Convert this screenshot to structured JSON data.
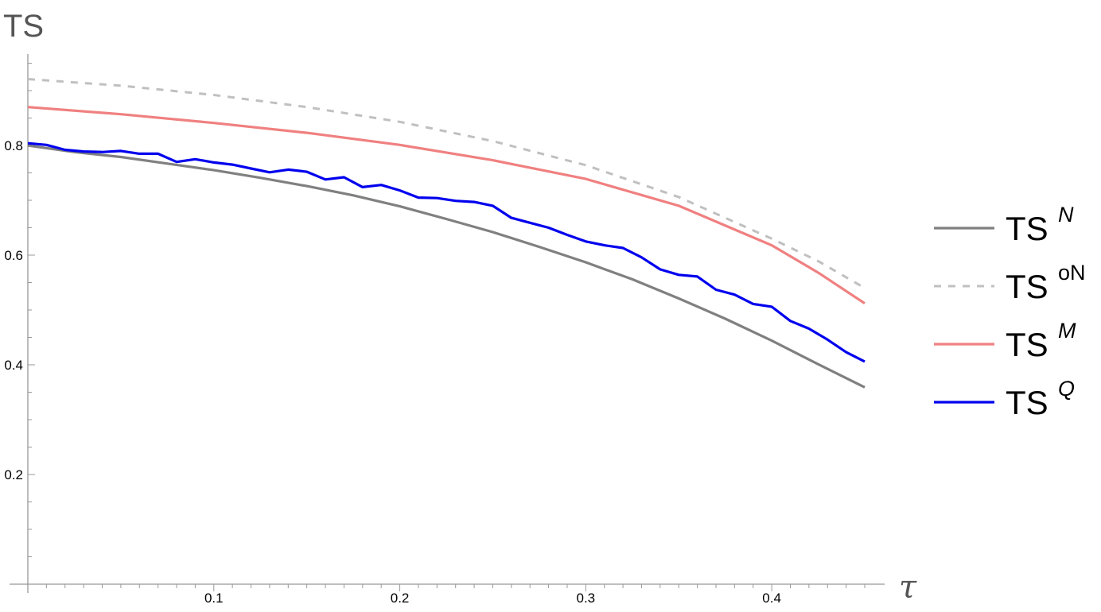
{
  "chart_data": {
    "type": "line",
    "title": "",
    "ylabel": "TS",
    "xlabel": "τ",
    "xlim": [
      0,
      0.462
    ],
    "ylim": [
      0,
      0.97
    ],
    "x_ticks": [
      0.1,
      0.2,
      0.3,
      0.4
    ],
    "x_tick_labels": [
      "0.1",
      "0.2",
      "0.3",
      "0.4"
    ],
    "y_ticks": [
      0.2,
      0.4,
      0.6,
      0.8
    ],
    "y_tick_labels": [
      "0.2",
      "0.4",
      "0.6",
      "0.8"
    ],
    "grid": false,
    "legend_position": "right",
    "series": [
      {
        "name": "TS",
        "name_sup": "N",
        "sup_italic": true,
        "color": "#808080",
        "dash": false,
        "x": [
          0,
          0.025,
          0.05,
          0.075,
          0.1,
          0.125,
          0.15,
          0.175,
          0.2,
          0.225,
          0.25,
          0.275,
          0.3,
          0.325,
          0.35,
          0.375,
          0.4,
          0.425,
          0.45
        ],
        "y": [
          0.8,
          0.788,
          0.779,
          0.767,
          0.755,
          0.741,
          0.726,
          0.709,
          0.689,
          0.666,
          0.642,
          0.615,
          0.587,
          0.556,
          0.521,
          0.484,
          0.444,
          0.401,
          0.359
        ]
      },
      {
        "name": "TS",
        "name_sup": "oN",
        "sup_italic": false,
        "color": "#c0c0c0",
        "dash": true,
        "x": [
          0,
          0.05,
          0.1,
          0.15,
          0.2,
          0.25,
          0.3,
          0.35,
          0.4,
          0.425,
          0.45
        ],
        "y": [
          0.921,
          0.909,
          0.892,
          0.87,
          0.843,
          0.808,
          0.764,
          0.706,
          0.63,
          0.589,
          0.54
        ]
      },
      {
        "name": "TS",
        "name_sup": "M",
        "sup_italic": true,
        "color": "#f08080",
        "dash": false,
        "x": [
          0,
          0.05,
          0.1,
          0.15,
          0.2,
          0.25,
          0.3,
          0.35,
          0.4,
          0.425,
          0.45
        ],
        "y": [
          0.87,
          0.857,
          0.841,
          0.823,
          0.801,
          0.773,
          0.739,
          0.69,
          0.618,
          0.568,
          0.512
        ]
      },
      {
        "name": "TS",
        "name_sup": "Q",
        "sup_italic": true,
        "color": "#0000ee",
        "dash": false,
        "x": [
          0,
          0.01,
          0.02,
          0.03,
          0.04,
          0.05,
          0.06,
          0.07,
          0.08,
          0.09,
          0.1,
          0.11,
          0.12,
          0.13,
          0.14,
          0.15,
          0.16,
          0.17,
          0.18,
          0.19,
          0.2,
          0.21,
          0.22,
          0.23,
          0.24,
          0.25,
          0.26,
          0.27,
          0.28,
          0.29,
          0.3,
          0.31,
          0.32,
          0.33,
          0.34,
          0.35,
          0.36,
          0.37,
          0.38,
          0.39,
          0.4,
          0.41,
          0.42,
          0.43,
          0.44,
          0.45
        ],
        "y": [
          0.804,
          0.801,
          0.792,
          0.789,
          0.788,
          0.79,
          0.785,
          0.785,
          0.77,
          0.775,
          0.769,
          0.765,
          0.758,
          0.751,
          0.756,
          0.752,
          0.738,
          0.742,
          0.724,
          0.728,
          0.718,
          0.705,
          0.704,
          0.699,
          0.697,
          0.69,
          0.668,
          0.659,
          0.65,
          0.637,
          0.625,
          0.618,
          0.613,
          0.596,
          0.574,
          0.564,
          0.561,
          0.537,
          0.528,
          0.511,
          0.506,
          0.48,
          0.466,
          0.446,
          0.423,
          0.406
        ]
      }
    ]
  }
}
